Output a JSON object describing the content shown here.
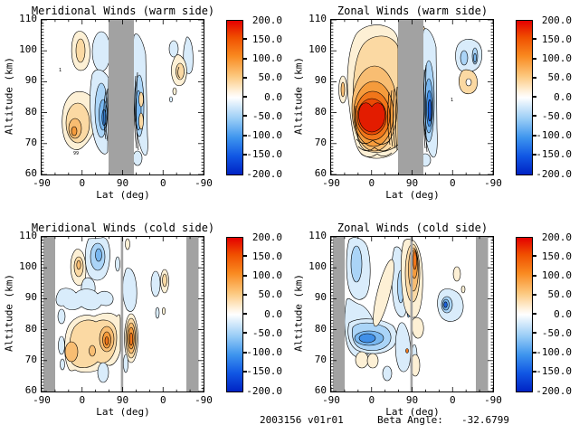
{
  "figure": {
    "background": "#ffffff",
    "footer": {
      "dataset": "2003156 v01r01",
      "beta_label": "Beta Angle:",
      "beta_value": "-32.6799"
    }
  },
  "axes": {
    "ylabel": "Altitude (km)",
    "xlabel": "Lat (deg)",
    "yticks": [
      "110",
      "100",
      "90",
      "80",
      "70",
      "60"
    ],
    "xticks": [
      "-90",
      "0",
      "90",
      "0",
      "-90"
    ],
    "ylim": [
      60,
      110
    ]
  },
  "colorbar": {
    "labels": [
      "200.0",
      "150.0",
      "100.0",
      "50.0",
      "0.0",
      "-50.0",
      "-100.0",
      "-150.0",
      "-200.0"
    ],
    "min": -200,
    "max": 200,
    "gradient_top_to_bottom": [
      "#e40000",
      "#f98a20",
      "#fcc87e",
      "#ffffff",
      "#98ccf6",
      "#3e95ee",
      "#0023c4"
    ]
  },
  "colors": {
    "gap_gray": "#a2a2a2",
    "positive_fills": [
      "#fdf0d5",
      "#fbd9a3",
      "#f8bd72",
      "#f59b3c",
      "#f1761a",
      "#ea4a06",
      "#e31c00"
    ],
    "negative_fills": [
      "#d9ecfb",
      "#aad4f7",
      "#78b7f0",
      "#4190e8",
      "#1a60df",
      "#0a32cc"
    ]
  },
  "panels": [
    {
      "title": "Meridional Winds (warm side)",
      "marks": {
        "a": "1",
        "b": "99"
      }
    },
    {
      "title": "Zonal Winds (warm side)",
      "marks": {
        "a": "1"
      }
    },
    {
      "title": "Meridional Winds (cold side)",
      "marks": {}
    },
    {
      "title": "Zonal Winds (cold side)",
      "marks": {}
    }
  ],
  "chart_data": [
    {
      "type": "filled-contour",
      "title": "Meridional Winds (warm side)",
      "xlabel": "Lat (deg)",
      "ylabel": "Altitude (km)",
      "x_axis": {
        "kind": "orbit-track latitude",
        "ticks": [
          -90,
          0,
          90,
          0,
          -90
        ],
        "note": "ascending -90 to 90 then descending 90 to -90"
      },
      "ylim": [
        60,
        110
      ],
      "value_range": [
        -200,
        200
      ],
      "colorbar_ticks": [
        200,
        150,
        100,
        50,
        0,
        -50,
        -100,
        -150,
        -200
      ],
      "contour_interval_approx": 25,
      "masked_lat_bands": [
        "ascending ~57 deg through descending ~65 deg (gray band at pole crossing)"
      ],
      "features": [
        {
          "sign": "+",
          "peak_value": 60,
          "lat_range": "-30..25 asc",
          "alt_range_km": "67..88"
        },
        {
          "sign": "+",
          "peak_value": 40,
          "lat_range": "-15..5 asc",
          "alt_range_km": "93..107"
        },
        {
          "sign": "-",
          "peak_value": -80,
          "lat_range": "30..57 asc",
          "alt_range_km": "63..110"
        },
        {
          "sign": "-",
          "peak_value": -60,
          "lat_range": "65..40 desc",
          "alt_range_km": "62..108"
        },
        {
          "sign": "-",
          "peak_value": -40,
          "lat_range": "-10..-45 desc",
          "alt_range_km": "85..105"
        },
        {
          "sign": "+",
          "peak_value": 50,
          "lat_range": "-25..-40 desc",
          "alt_range_km": "85..97"
        }
      ]
    },
    {
      "type": "filled-contour",
      "title": "Zonal Winds (warm side)",
      "xlabel": "Lat (deg)",
      "ylabel": "Altitude (km)",
      "x_axis": {
        "kind": "orbit-track latitude",
        "ticks": [
          -90,
          0,
          90,
          0,
          -90
        ],
        "note": "ascending -90 to 90 then descending 90 to -90"
      },
      "ylim": [
        60,
        110
      ],
      "value_range": [
        -200,
        200
      ],
      "colorbar_ticks": [
        200,
        150,
        100,
        50,
        0,
        -50,
        -100,
        -150,
        -200
      ],
      "contour_interval_approx": 25,
      "masked_lat_bands": [
        "ascending ~57 deg through descending ~65 deg (gray band at pole crossing)"
      ],
      "features": [
        {
          "sign": "+",
          "peak_value": 185,
          "lat_range": "-55..55 asc",
          "alt_range_km": "63..110",
          "note": "broad eastward jet, core ~175-200 at lat -15..25, alt 74..84"
        },
        {
          "sign": "+",
          "peak_value": 40,
          "lat_range": "-65..-55 asc",
          "alt_range_km": "86..99"
        },
        {
          "sign": "-",
          "peak_value": -150,
          "lat_range": "65..40 desc",
          "alt_range_km": "62..110",
          "note": "tight westward column just past pole crossing"
        },
        {
          "sign": "-",
          "peak_value": -60,
          "lat_range": "-5..-45 desc",
          "alt_range_km": "92..108"
        },
        {
          "sign": "+",
          "peak_value": 30,
          "lat_range": "-20..-45 desc",
          "alt_range_km": "83..95"
        }
      ]
    },
    {
      "type": "filled-contour",
      "title": "Meridional Winds (cold side)",
      "xlabel": "Lat (deg)",
      "ylabel": "Altitude (km)",
      "x_axis": {
        "kind": "orbit-track latitude",
        "ticks": [
          -90,
          0,
          90,
          0,
          -90
        ],
        "note": "ascending -90 to 90 then descending 90 to -90"
      },
      "ylim": [
        60,
        110
      ],
      "value_range": [
        -200,
        200
      ],
      "colorbar_ticks": [
        200,
        150,
        100,
        50,
        0,
        -50,
        -100,
        -150,
        -200
      ],
      "contour_interval_approx": 25,
      "masked_lat_bands": [
        "ascending -90..-65 (gray)",
        "thin gray line at lat 90 (pole crossing)",
        "descending -55..-90 (gray)"
      ],
      "features": [
        {
          "sign": "-",
          "peak_value": -70,
          "lat_range": "10..45 asc",
          "alt_range_km": "95..110"
        },
        {
          "sign": "+",
          "peak_value": 50,
          "lat_range": "-25..-5 asc",
          "alt_range_km": "94..107"
        },
        {
          "sign": "-",
          "peak_value": -30,
          "lat_range": "-55..45 asc",
          "alt_range_km": "86..96"
        },
        {
          "sign": "+",
          "peak_value": 90,
          "lat_range": "-25..90 asc",
          "alt_range_km": "66..87",
          "note": "cores near lat 55..90, alt 73..83"
        },
        {
          "sign": "+",
          "peak_value": 90,
          "lat_range": "90..75 desc",
          "alt_range_km": "70..86",
          "note": "tightly striped cell just past pole line"
        },
        {
          "sign": "-",
          "peak_value": -30,
          "lat_range": "25..45 asc",
          "alt_range_km": "60..72"
        },
        {
          "sign": "-",
          "peak_value": -40,
          "lat_range": "-5..-25 desc",
          "alt_range_km": "88..102"
        },
        {
          "sign": "+",
          "peak_value": 40,
          "lat_range": "-20..-35 desc",
          "alt_range_km": "88..103"
        }
      ]
    },
    {
      "type": "filled-contour",
      "title": "Zonal Winds (cold side)",
      "xlabel": "Lat (deg)",
      "ylabel": "Altitude (km)",
      "x_axis": {
        "kind": "orbit-track latitude",
        "ticks": [
          -90,
          0,
          90,
          0,
          -90
        ],
        "note": "ascending -90 to 90 then descending 90 to -90"
      },
      "ylim": [
        60,
        110
      ],
      "value_range": [
        -200,
        200
      ],
      "colorbar_ticks": [
        200,
        150,
        100,
        50,
        0,
        -50,
        -100,
        -150,
        -200
      ],
      "contour_interval_approx": 25,
      "masked_lat_bands": [
        "ascending -90..-65 (gray)",
        "thin gray line at lat 90 (pole crossing)",
        "descending -55..-90 (gray)"
      ],
      "features": [
        {
          "sign": "-",
          "peak_value": -130,
          "lat_range": "-55..60 asc",
          "alt_range_km": "62..110",
          "note": "broad westward region, core ~-125 at lat -20..20, alt 75..82"
        },
        {
          "sign": "+",
          "peak_value": 30,
          "lat_range": "5..40 asc",
          "alt_range_km": "86..105",
          "note": "diagonal eastward streak"
        },
        {
          "sign": "+",
          "peak_value": 110,
          "lat_range": "70..90 asc into desc",
          "alt_range_km": "84..110",
          "note": "eastward cell straddling pole line"
        },
        {
          "sign": "+",
          "peak_value": 30,
          "lat_range": "-20..10 asc",
          "alt_range_km": "66..74",
          "note": "twin low-altitude lobes"
        },
        {
          "sign": "-",
          "peak_value": -90,
          "lat_range": "-10..-35 desc",
          "alt_range_km": "83..95"
        },
        {
          "sign": "+",
          "peak_value": 30,
          "lat_range": "-30..-45 desc",
          "alt_range_km": "88..100"
        }
      ]
    }
  ]
}
